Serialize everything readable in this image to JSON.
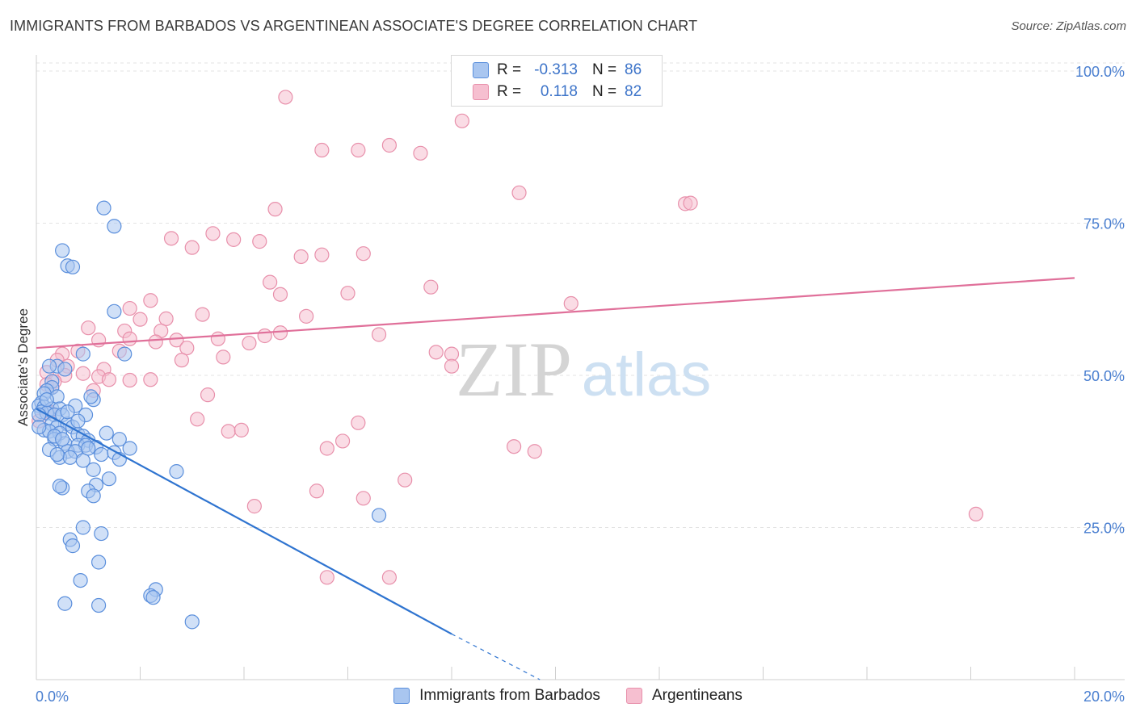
{
  "title": "IMMIGRANTS FROM BARBADOS VS ARGENTINEAN ASSOCIATE'S DEGREE CORRELATION CHART",
  "source": "Source: ZipAtlas.com",
  "watermark": {
    "zip": "ZIP",
    "atlas": "atlas"
  },
  "colors": {
    "blue_fill": "#a9c6f0",
    "blue_stroke": "#5b8fdc",
    "blue_line": "#2f74d0",
    "pink_fill": "#f6bfd0",
    "pink_stroke": "#e890ab",
    "pink_line": "#e0709a",
    "tick_text": "#4a7fd0",
    "grid": "#e3e3e3"
  },
  "legend": {
    "rows": [
      {
        "r_label": "R =",
        "r_value": "-0.313",
        "n_label": "N =",
        "n_value": "86",
        "series": "blue"
      },
      {
        "r_label": "R =",
        "r_value": "0.118",
        "n_label": "N =",
        "n_value": "82",
        "series": "pink"
      }
    ]
  },
  "bottom_legend": [
    {
      "label": "Immigrants from Barbados",
      "series": "blue"
    },
    {
      "label": "Argentineans",
      "series": "pink"
    }
  ],
  "chart_data": {
    "type": "scatter",
    "title": "IMMIGRANTS FROM BARBADOS VS ARGENTINEAN ASSOCIATE'S DEGREE CORRELATION CHART",
    "xlabel": "",
    "ylabel": "Associate's Degree",
    "xlim": [
      0,
      20
    ],
    "ylim": [
      0,
      100
    ],
    "x_tick_labels": [
      "0.0%",
      "20.0%"
    ],
    "y_ticks": [
      25,
      50,
      75,
      100
    ],
    "y_tick_labels": [
      "25.0%",
      "50.0%",
      "75.0%",
      "100.0%"
    ],
    "series": [
      {
        "name": "Immigrants from Barbados",
        "color": "blue",
        "trend": {
          "x0": 0.0,
          "y0": 44.5,
          "x1": 8.0,
          "y1": 7.5,
          "dash_to_x": 9.7,
          "dash_to_y": 0
        },
        "points": [
          [
            1.3,
            77.5
          ],
          [
            1.5,
            74.5
          ],
          [
            0.5,
            70.5
          ],
          [
            0.6,
            68.0
          ],
          [
            0.7,
            67.8
          ],
          [
            1.5,
            60.5
          ],
          [
            1.7,
            53.5
          ],
          [
            0.9,
            53.5
          ],
          [
            0.4,
            51.5
          ],
          [
            0.55,
            51.0
          ],
          [
            0.25,
            51.5
          ],
          [
            0.3,
            49.0
          ],
          [
            0.3,
            48.0
          ],
          [
            0.2,
            47.5
          ],
          [
            0.15,
            47.0
          ],
          [
            0.4,
            46.5
          ],
          [
            0.1,
            45.5
          ],
          [
            0.05,
            45.0
          ],
          [
            0.15,
            44.8
          ],
          [
            0.3,
            44.5
          ],
          [
            0.45,
            44.5
          ],
          [
            0.1,
            44.0
          ],
          [
            0.2,
            43.8
          ],
          [
            0.35,
            43.5
          ],
          [
            0.5,
            43.5
          ],
          [
            1.1,
            46.0
          ],
          [
            1.05,
            46.5
          ],
          [
            0.75,
            45.0
          ],
          [
            0.95,
            43.5
          ],
          [
            0.3,
            42.0
          ],
          [
            0.4,
            41.5
          ],
          [
            0.6,
            42.0
          ],
          [
            0.7,
            41.5
          ],
          [
            0.15,
            41.0
          ],
          [
            0.25,
            40.8
          ],
          [
            0.45,
            40.5
          ],
          [
            0.8,
            40.3
          ],
          [
            0.9,
            40.0
          ],
          [
            1.0,
            39.3
          ],
          [
            0.35,
            39.5
          ],
          [
            0.55,
            38.8
          ],
          [
            0.8,
            38.5
          ],
          [
            0.95,
            38.5
          ],
          [
            1.15,
            38.2
          ],
          [
            0.6,
            37.5
          ],
          [
            0.75,
            37.5
          ],
          [
            0.25,
            37.8
          ],
          [
            0.45,
            36.5
          ],
          [
            0.65,
            36.5
          ],
          [
            1.25,
            37.0
          ],
          [
            1.5,
            37.3
          ],
          [
            1.8,
            38.0
          ],
          [
            1.6,
            36.2
          ],
          [
            1.6,
            39.5
          ],
          [
            1.35,
            40.5
          ],
          [
            0.9,
            36.0
          ],
          [
            1.1,
            34.5
          ],
          [
            2.7,
            34.2
          ],
          [
            1.4,
            33.0
          ],
          [
            1.15,
            32.0
          ],
          [
            0.5,
            31.5
          ],
          [
            0.45,
            31.8
          ],
          [
            1.0,
            31.0
          ],
          [
            1.1,
            30.2
          ],
          [
            6.6,
            27.0
          ],
          [
            0.9,
            25.0
          ],
          [
            1.25,
            24.0
          ],
          [
            0.65,
            23.0
          ],
          [
            0.7,
            22.0
          ],
          [
            1.2,
            19.3
          ],
          [
            0.85,
            16.3
          ],
          [
            2.3,
            14.8
          ],
          [
            2.2,
            13.8
          ],
          [
            2.25,
            13.5
          ],
          [
            0.55,
            12.5
          ],
          [
            1.2,
            12.2
          ],
          [
            3.0,
            9.5
          ],
          [
            0.05,
            43.5
          ],
          [
            0.2,
            46.0
          ],
          [
            0.35,
            40.0
          ],
          [
            0.6,
            44.0
          ],
          [
            1.0,
            38.0
          ],
          [
            0.8,
            42.5
          ],
          [
            0.4,
            37.0
          ],
          [
            0.05,
            41.5
          ],
          [
            0.5,
            39.5
          ]
        ]
      },
      {
        "name": "Argentineans",
        "color": "pink",
        "trend": {
          "x0": 0.0,
          "y0": 54.5,
          "x1": 20.0,
          "y1": 66.0
        },
        "points": [
          [
            4.8,
            95.7
          ],
          [
            8.2,
            91.8
          ],
          [
            5.5,
            87.0
          ],
          [
            6.2,
            87.0
          ],
          [
            6.8,
            87.8
          ],
          [
            7.4,
            86.5
          ],
          [
            9.3,
            80.0
          ],
          [
            12.5,
            78.2
          ],
          [
            12.6,
            78.3
          ],
          [
            4.6,
            77.3
          ],
          [
            3.4,
            73.3
          ],
          [
            2.6,
            72.5
          ],
          [
            3.8,
            72.3
          ],
          [
            4.3,
            72.0
          ],
          [
            3.0,
            71.0
          ],
          [
            5.1,
            69.5
          ],
          [
            5.5,
            69.8
          ],
          [
            6.3,
            70.0
          ],
          [
            4.5,
            65.3
          ],
          [
            7.6,
            64.5
          ],
          [
            4.7,
            63.3
          ],
          [
            6.0,
            63.5
          ],
          [
            2.2,
            62.3
          ],
          [
            10.3,
            61.8
          ],
          [
            1.8,
            61.0
          ],
          [
            3.2,
            60.0
          ],
          [
            5.2,
            59.7
          ],
          [
            2.0,
            59.2
          ],
          [
            2.5,
            59.3
          ],
          [
            1.0,
            57.8
          ],
          [
            1.7,
            57.3
          ],
          [
            2.4,
            57.3
          ],
          [
            4.4,
            56.5
          ],
          [
            4.7,
            57.0
          ],
          [
            6.6,
            56.7
          ],
          [
            1.2,
            55.8
          ],
          [
            1.8,
            56.0
          ],
          [
            2.7,
            55.8
          ],
          [
            3.5,
            56.0
          ],
          [
            2.3,
            55.5
          ],
          [
            4.1,
            55.3
          ],
          [
            2.9,
            54.5
          ],
          [
            0.8,
            54.0
          ],
          [
            1.6,
            54.0
          ],
          [
            0.5,
            53.5
          ],
          [
            7.7,
            53.8
          ],
          [
            8.0,
            53.5
          ],
          [
            3.6,
            53.0
          ],
          [
            0.4,
            52.5
          ],
          [
            2.8,
            52.5
          ],
          [
            0.6,
            51.5
          ],
          [
            1.3,
            51.0
          ],
          [
            0.2,
            50.5
          ],
          [
            8.0,
            51.5
          ],
          [
            0.9,
            50.3
          ],
          [
            0.55,
            50.0
          ],
          [
            1.2,
            49.8
          ],
          [
            1.4,
            49.3
          ],
          [
            1.8,
            49.2
          ],
          [
            2.2,
            49.3
          ],
          [
            0.35,
            49.0
          ],
          [
            0.2,
            48.5
          ],
          [
            0.3,
            48.0
          ],
          [
            1.1,
            47.5
          ],
          [
            3.3,
            46.8
          ],
          [
            0.25,
            44.0
          ],
          [
            3.1,
            42.8
          ],
          [
            6.2,
            42.2
          ],
          [
            3.7,
            40.8
          ],
          [
            3.95,
            41.0
          ],
          [
            5.9,
            39.2
          ],
          [
            5.6,
            38.0
          ],
          [
            9.2,
            38.3
          ],
          [
            9.6,
            37.5
          ],
          [
            7.1,
            32.8
          ],
          [
            5.4,
            31.0
          ],
          [
            6.3,
            29.8
          ],
          [
            4.2,
            28.5
          ],
          [
            18.1,
            27.2
          ],
          [
            5.6,
            16.8
          ],
          [
            6.8,
            16.8
          ],
          [
            0.05,
            42.5
          ]
        ]
      }
    ]
  }
}
